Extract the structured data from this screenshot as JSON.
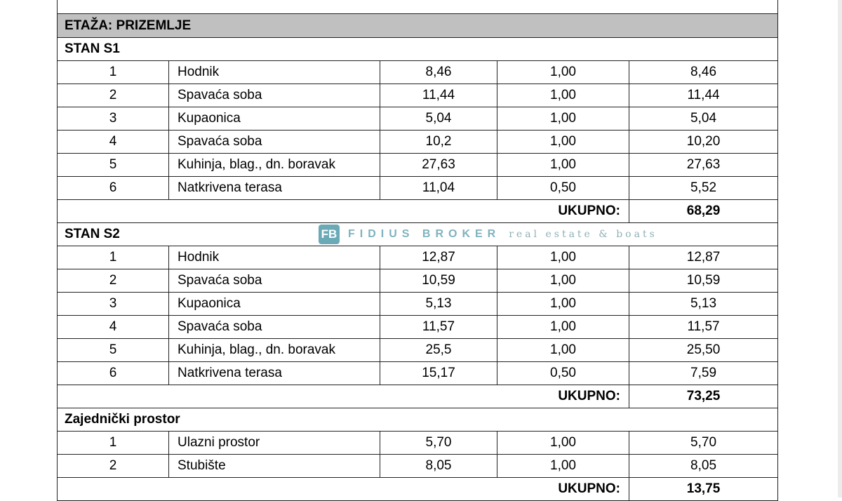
{
  "floor_title": "ETAŽA: PRIZEMLJE",
  "total_label": "UKUPNO:",
  "sections": [
    {
      "title": "STAN S1",
      "rows": [
        [
          "1",
          "Hodnik",
          "8,46",
          "1,00",
          "8,46"
        ],
        [
          "2",
          "Spavaća soba",
          "11,44",
          "1,00",
          "11,44"
        ],
        [
          "3",
          "Kupaonica",
          "5,04",
          "1,00",
          "5,04"
        ],
        [
          "4",
          "Spavaća soba",
          "10,2",
          "1,00",
          "10,20"
        ],
        [
          "5",
          "Kuhinja, blag., dn. boravak",
          "27,63",
          "1,00",
          "27,63"
        ],
        [
          "6",
          "Natkrivena terasa",
          "11,04",
          "0,50",
          "5,52"
        ]
      ],
      "total": "68,29"
    },
    {
      "title": "STAN S2",
      "rows": [
        [
          "1",
          "Hodnik",
          "12,87",
          "1,00",
          "12,87"
        ],
        [
          "2",
          "Spavaća soba",
          "10,59",
          "1,00",
          "10,59"
        ],
        [
          "3",
          "Kupaonica",
          "5,13",
          "1,00",
          "5,13"
        ],
        [
          "4",
          "Spavaća soba",
          "11,57",
          "1,00",
          "11,57"
        ],
        [
          "5",
          "Kuhinja, blag., dn. boravak",
          "25,5",
          "1,00",
          "25,50"
        ],
        [
          "6",
          "Natkrivena terasa",
          "15,17",
          "0,50",
          "7,59"
        ]
      ],
      "total": "73,25"
    },
    {
      "title": "Zajednički prostor",
      "rows": [
        [
          "1",
          "Ulazni prostor",
          "5,70",
          "1,00",
          "5,70"
        ],
        [
          "2",
          "Stubište",
          "8,05",
          "1,00",
          "8,05"
        ]
      ],
      "total": "13,75"
    }
  ],
  "watermark": {
    "logo": "FB",
    "name": "FIDIUS BROKER",
    "tagline": "real estate & boats",
    "color": "#6aaab7"
  }
}
